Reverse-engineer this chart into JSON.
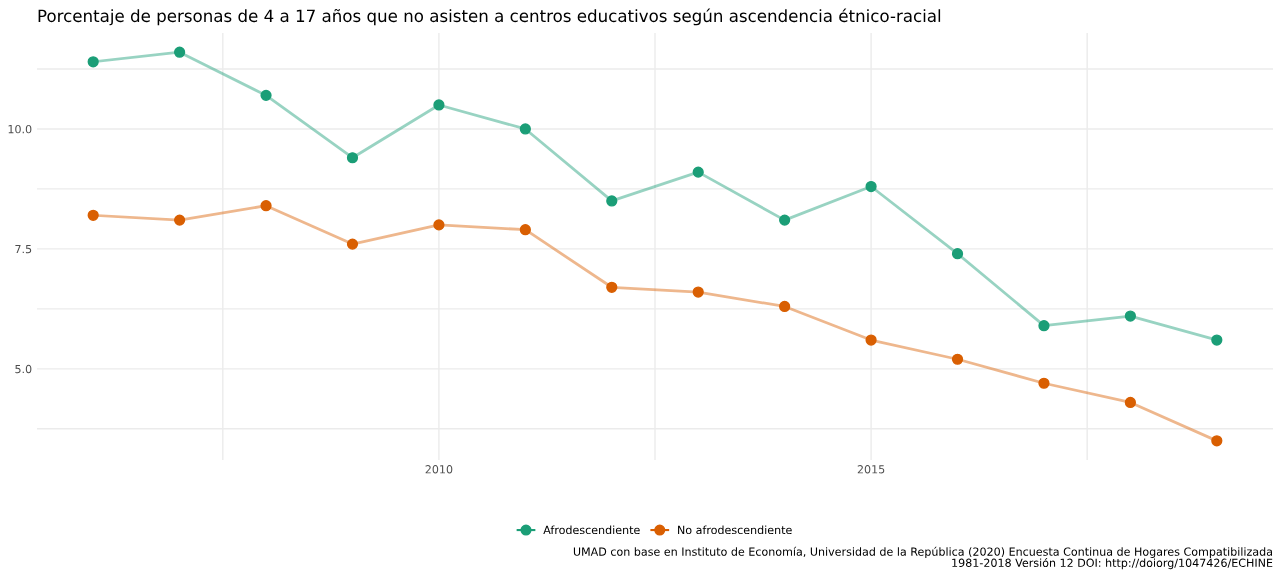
{
  "chart_data": {
    "type": "line",
    "title": "Porcentaje de personas de 4 a 17 años que no asisten a centros educativos según ascendencia étnico-racial",
    "x": [
      2006,
      2007,
      2008,
      2009,
      2010,
      2011,
      2012,
      2013,
      2014,
      2015,
      2016,
      2017,
      2018,
      2019
    ],
    "series": [
      {
        "name": "Afrodescendiente",
        "color": "#1b9e77",
        "values": [
          11.4,
          11.6,
          10.7,
          9.4,
          10.5,
          10.0,
          8.5,
          9.1,
          8.1,
          8.8,
          7.4,
          5.9,
          6.1,
          5.6
        ]
      },
      {
        "name": "No afrodescendiente",
        "color": "#d95f02",
        "values": [
          8.2,
          8.1,
          8.4,
          7.6,
          8.0,
          7.9,
          6.7,
          6.6,
          6.3,
          5.6,
          5.2,
          4.7,
          4.3,
          3.5
        ]
      }
    ],
    "xlim": [
      2005.35,
      2019.65
    ],
    "xticks": [
      {
        "value": 2007.5,
        "label": null
      },
      2010,
      {
        "value": 2012.5,
        "label": null
      },
      2015,
      {
        "value": 2017.5,
        "label": null
      }
    ],
    "ylim": [
      3.1,
      12.0
    ],
    "yticks": [
      {
        "value": 3.75,
        "label": null
      },
      {
        "value": 5.0,
        "label": "5.0"
      },
      {
        "value": 6.25,
        "label": null
      },
      {
        "value": 7.5,
        "label": "7.5"
      },
      {
        "value": 8.75,
        "label": null
      },
      {
        "value": 10.0,
        "label": "10.0"
      },
      {
        "value": 11.25,
        "label": null
      }
    ],
    "grid": true,
    "legend": "bottom",
    "marker": "circle",
    "line_style": "solid",
    "annotations": [
      "UMAD con base en Instituto de Economía, Universidad de la República (2020) Encuesta Continua de Hogares Compatibilizada\n1981-2018 Versión 12 DOI: http://doiorg/1047426/ECHINE"
    ]
  }
}
